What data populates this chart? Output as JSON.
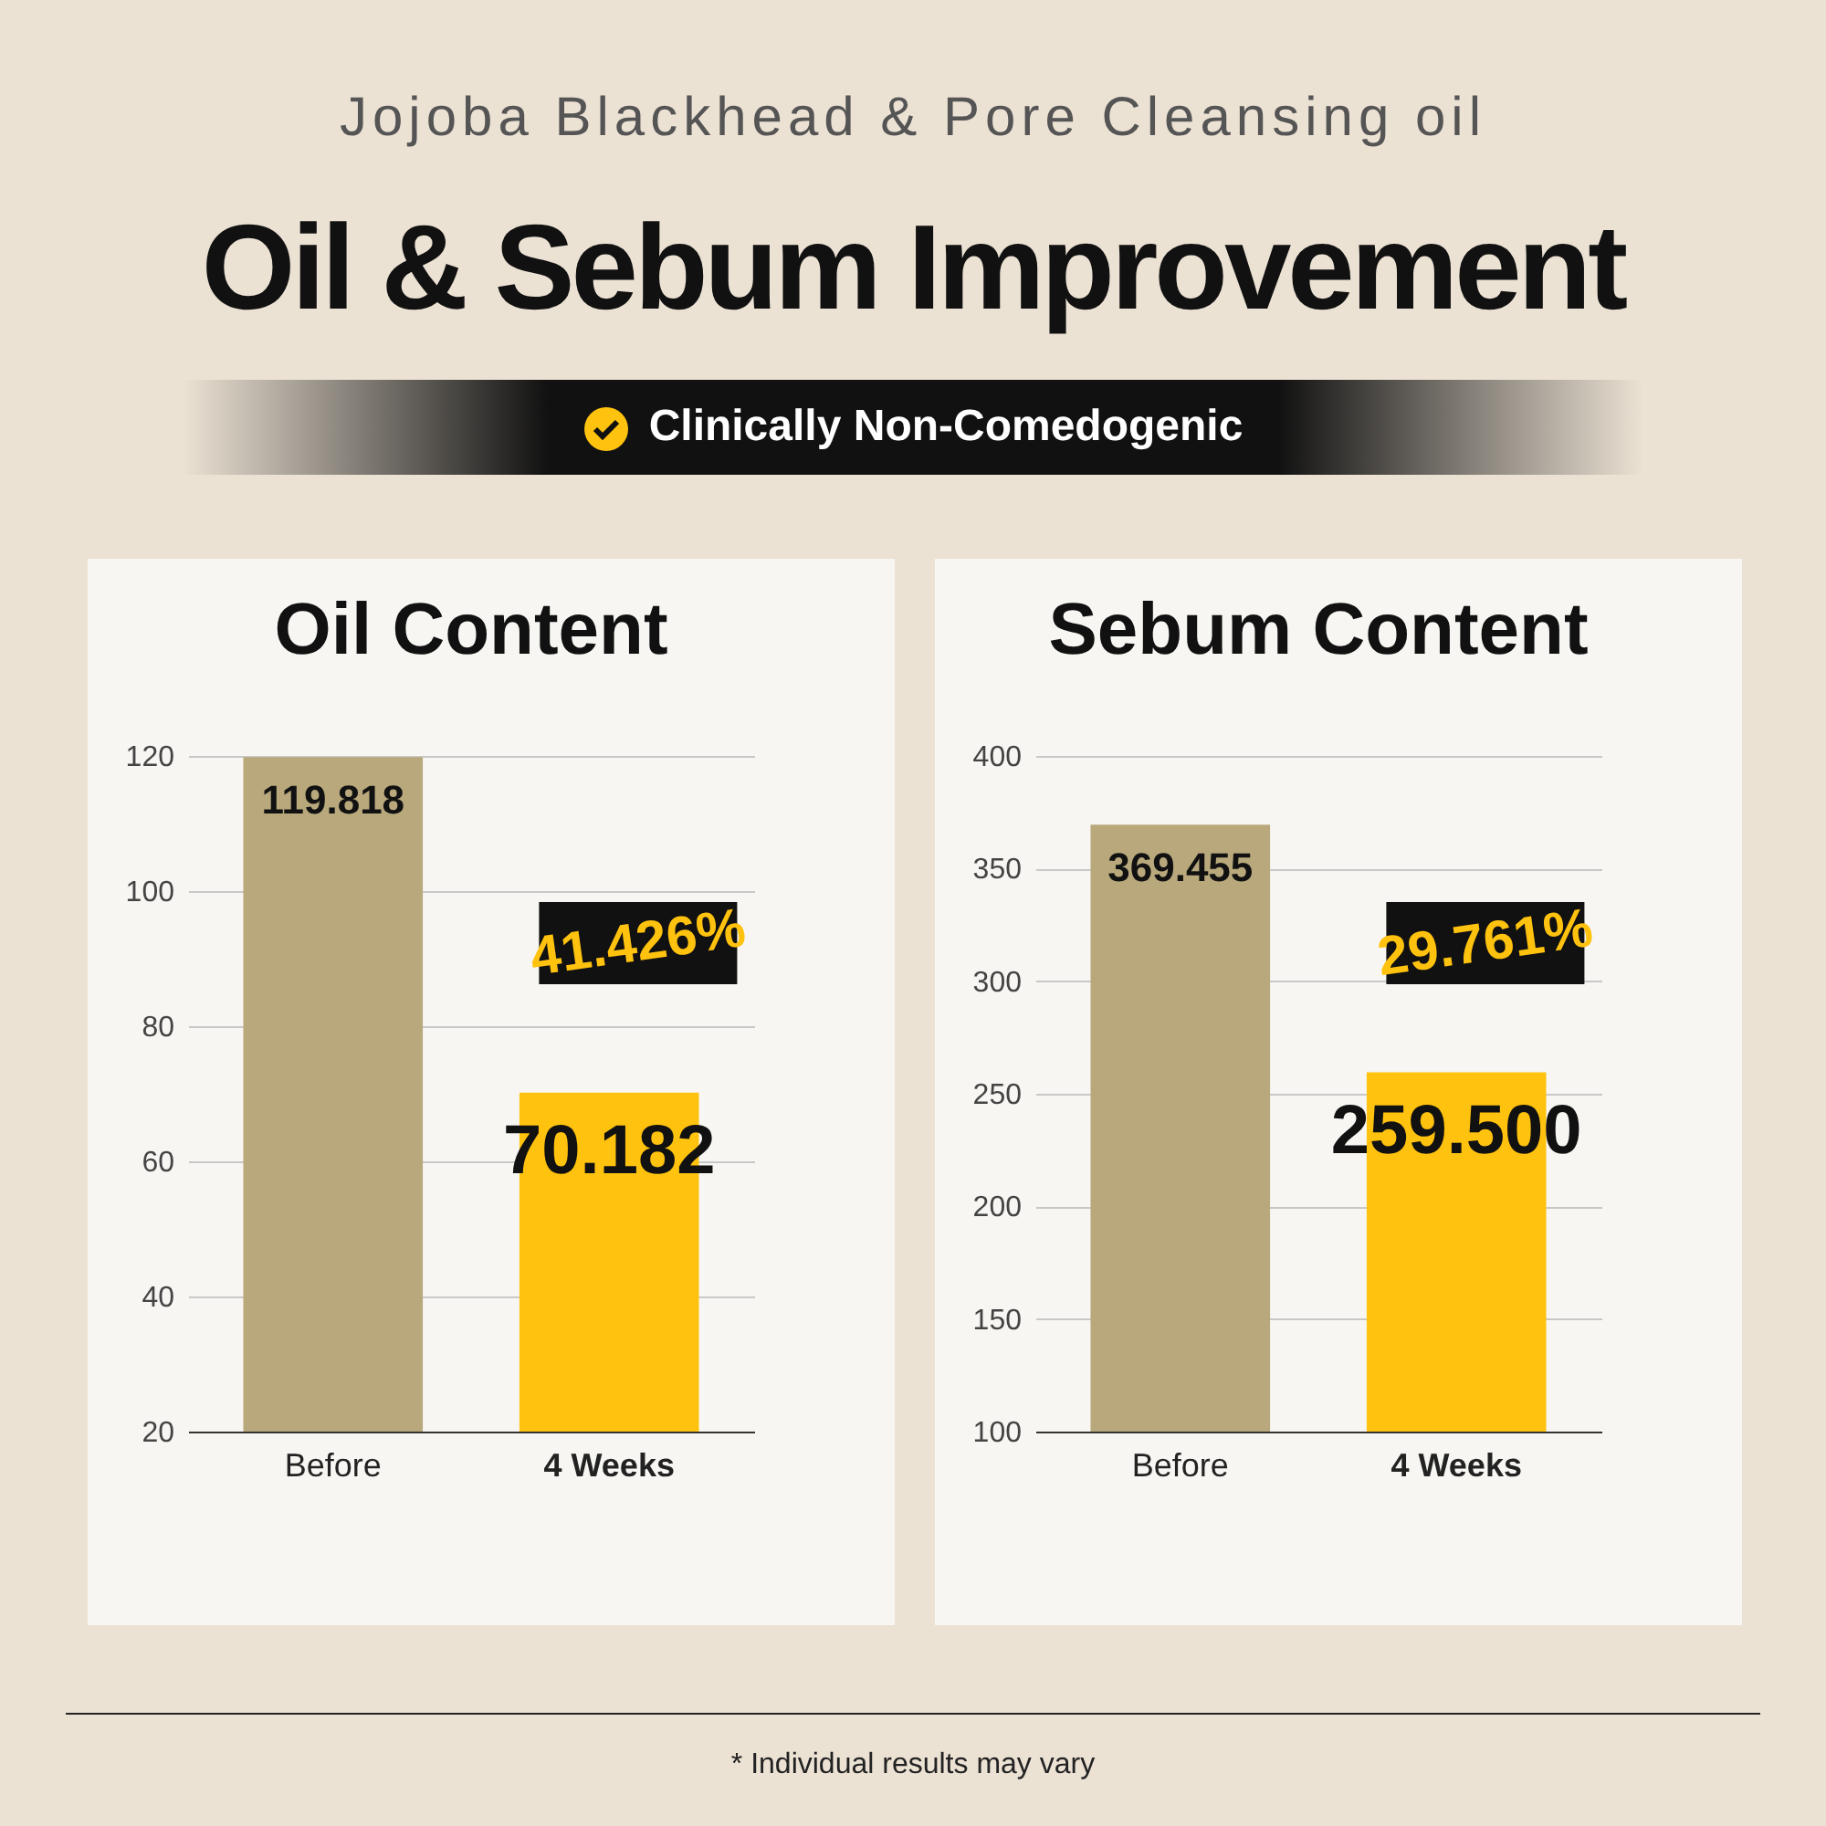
{
  "chart_data": [
    {
      "type": "other",
      "title": "Oil & Sebum Improvement",
      "subtitle": "Jojoba Blackhead & Pore Cleansing oil",
      "annotations": [
        "Clinically Non-Comedogenic",
        "* Individual results may vary"
      ]
    },
    {
      "type": "bar",
      "title": "Oil Content",
      "categories": [
        "Before",
        "4 Weeks"
      ],
      "values": [
        119.818,
        70.182
      ],
      "value_labels": [
        "119.818",
        "70.182"
      ],
      "colors": [
        "#b8a87c",
        "#ffc20e"
      ],
      "ylim": [
        20,
        120
      ],
      "yticks": [
        20,
        40,
        60,
        80,
        100,
        120
      ],
      "grid": "y",
      "annotations": [
        "41.426%"
      ]
    },
    {
      "type": "bar",
      "title": "Sebum Content",
      "categories": [
        "Before",
        "4 Weeks"
      ],
      "values": [
        369.455,
        259.5
      ],
      "value_labels": [
        "369.455",
        "259.500"
      ],
      "colors": [
        "#b8a87c",
        "#ffc20e"
      ],
      "ylim": [
        100,
        400
      ],
      "yticks": [
        100,
        150,
        200,
        250,
        300,
        350,
        400
      ],
      "grid": "y",
      "annotations": [
        "29.761%"
      ]
    }
  ]
}
